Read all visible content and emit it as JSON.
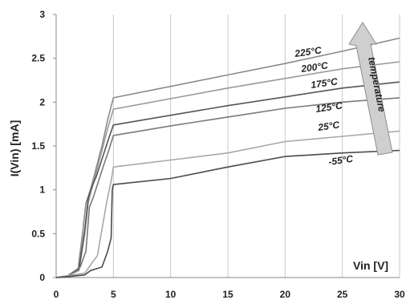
{
  "chart_data": {
    "type": "line",
    "xlabel": "Vin [V]",
    "ylabel": "I(Vin) [mA]",
    "xlim": [
      0,
      30
    ],
    "ylim": [
      0,
      3
    ],
    "xticks": [
      "0",
      "5",
      "10",
      "15",
      "20",
      "25",
      "30"
    ],
    "yticks": [
      "0",
      "0.5",
      "1",
      "1.5",
      "2",
      "2.5",
      "3"
    ],
    "grid": "vertical",
    "annotation": "temperature",
    "series": [
      {
        "name": "225°C",
        "color": "#8a8a8a",
        "x": [
          0,
          1,
          1.9,
          2.3,
          2.6,
          3.0,
          3.5,
          4.0,
          4.5,
          5.0,
          10,
          15,
          20,
          25,
          30
        ],
        "y": [
          0,
          0.02,
          0.08,
          0.5,
          0.85,
          1.0,
          1.25,
          1.5,
          1.8,
          2.05,
          2.18,
          2.31,
          2.44,
          2.58,
          2.73
        ]
      },
      {
        "name": "200°C",
        "color": "#9a9a9a",
        "x": [
          0,
          1,
          2.0,
          2.5,
          2.8,
          3.0,
          3.5,
          4.0,
          4.5,
          5.0,
          10,
          15,
          20,
          25,
          30
        ],
        "y": [
          0,
          0.02,
          0.08,
          0.5,
          0.85,
          0.95,
          1.2,
          1.45,
          1.7,
          1.92,
          2.04,
          2.16,
          2.27,
          2.38,
          2.46
        ]
      },
      {
        "name": "175°C",
        "color": "#555555",
        "x": [
          0,
          1,
          2.0,
          2.5,
          2.8,
          3.0,
          3.5,
          4.0,
          4.5,
          5.0,
          10,
          15,
          20,
          25,
          30
        ],
        "y": [
          0,
          0.02,
          0.1,
          0.55,
          0.9,
          1.0,
          1.15,
          1.35,
          1.55,
          1.74,
          1.85,
          1.96,
          2.06,
          2.16,
          2.23
        ]
      },
      {
        "name": "125°C",
        "color": "#7a7a7a",
        "x": [
          0,
          1,
          2.1,
          2.6,
          2.9,
          3.2,
          3.7,
          4.2,
          4.6,
          5.0,
          10,
          15,
          20,
          25,
          30
        ],
        "y": [
          0,
          0.02,
          0.12,
          0.3,
          0.8,
          0.9,
          1.1,
          1.3,
          1.45,
          1.62,
          1.73,
          1.83,
          1.93,
          2.0,
          2.05
        ]
      },
      {
        "name": "25°C",
        "color": "#a8a8a8",
        "x": [
          0,
          1,
          2.5,
          3.2,
          3.6,
          4.0,
          4.4,
          4.8,
          5.0,
          10,
          15,
          20,
          25,
          30
        ],
        "y": [
          0,
          0.02,
          0.05,
          0.18,
          0.25,
          0.55,
          0.85,
          1.1,
          1.26,
          1.34,
          1.42,
          1.55,
          1.61,
          1.67
        ]
      },
      {
        "name": "-55°C",
        "color": "#4a4a4a",
        "x": [
          0,
          1,
          2.5,
          3.0,
          3.5,
          4.0,
          4.5,
          4.8,
          4.9,
          5.0,
          10,
          15,
          20,
          25,
          30
        ],
        "y": [
          0,
          0.01,
          0.03,
          0.08,
          0.1,
          0.12,
          0.3,
          0.45,
          1.0,
          1.06,
          1.13,
          1.26,
          1.38,
          1.42,
          1.45
        ]
      }
    ]
  }
}
